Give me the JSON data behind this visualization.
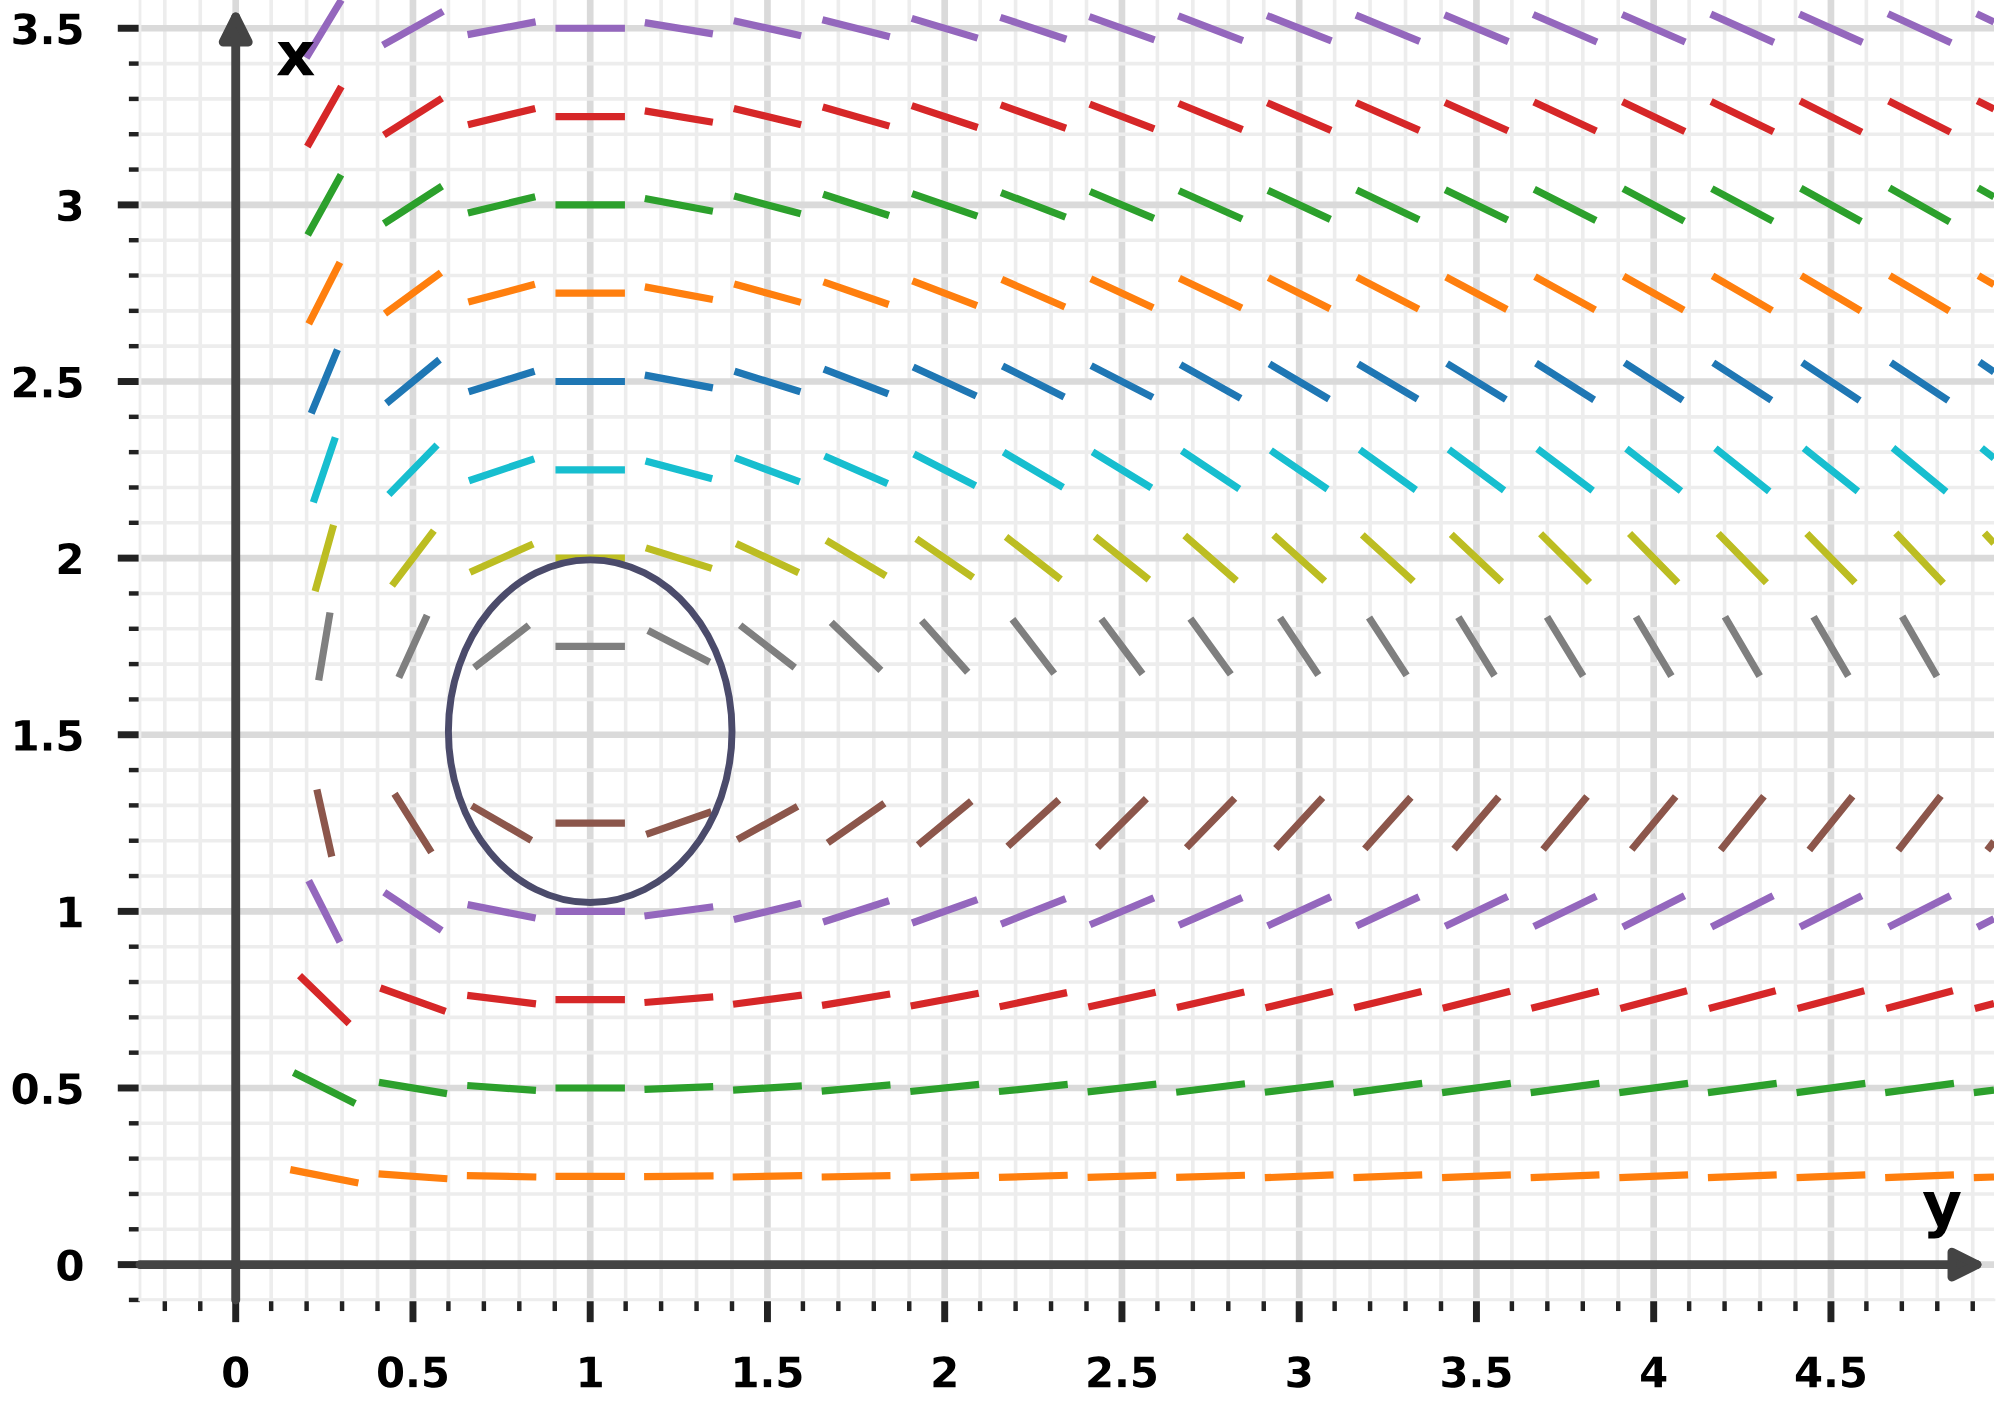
{
  "chart_data": {
    "type": "line",
    "xlabel": "y",
    "ylabel": "x",
    "grid": true,
    "line_style": "solid",
    "xlim": [
      -0.27,
      4.96
    ],
    "ylim": [
      -0.1,
      3.58
    ],
    "xticks": [
      {
        "value": -0.2,
        "label": null
      },
      {
        "value": -0.1,
        "label": null
      },
      0,
      {
        "value": 0.1,
        "label": null
      },
      {
        "value": 0.2,
        "label": null
      },
      {
        "value": 0.3,
        "label": null
      },
      {
        "value": 0.4,
        "label": null
      },
      0.5,
      {
        "value": 0.6,
        "label": null
      },
      {
        "value": 0.7,
        "label": null
      },
      {
        "value": 0.8,
        "label": null
      },
      {
        "value": 0.9,
        "label": null
      },
      1,
      {
        "value": 1.1,
        "label": null
      },
      {
        "value": 1.2,
        "label": null
      },
      {
        "value": 1.3,
        "label": null
      },
      {
        "value": 1.4,
        "label": null
      },
      1.5,
      {
        "value": 1.6,
        "label": null
      },
      {
        "value": 1.7,
        "label": null
      },
      {
        "value": 1.8,
        "label": null
      },
      {
        "value": 1.9,
        "label": null
      },
      2,
      {
        "value": 2.1,
        "label": null
      },
      {
        "value": 2.2,
        "label": null
      },
      {
        "value": 2.3,
        "label": null
      },
      {
        "value": 2.4,
        "label": null
      },
      2.5,
      {
        "value": 2.6,
        "label": null
      },
      {
        "value": 2.7,
        "label": null
      },
      {
        "value": 2.8,
        "label": null
      },
      {
        "value": 2.9,
        "label": null
      },
      3,
      {
        "value": 3.1,
        "label": null
      },
      {
        "value": 3.2,
        "label": null
      },
      {
        "value": 3.3,
        "label": null
      },
      {
        "value": 3.4,
        "label": null
      },
      3.5,
      {
        "value": 3.6,
        "label": null
      },
      {
        "value": 3.7,
        "label": null
      },
      {
        "value": 3.8,
        "label": null
      },
      {
        "value": 3.9,
        "label": null
      },
      4,
      {
        "value": 4.1,
        "label": null
      },
      {
        "value": 4.2,
        "label": null
      },
      {
        "value": 4.3,
        "label": null
      },
      {
        "value": 4.4,
        "label": null
      },
      4.5,
      {
        "value": 4.6,
        "label": null
      },
      {
        "value": 4.7,
        "label": null
      },
      {
        "value": 4.8,
        "label": null
      },
      {
        "value": 4.9,
        "label": null
      }
    ],
    "yticks": [
      {
        "value": -0.1,
        "label": null
      },
      0,
      {
        "value": 0.1,
        "label": null
      },
      {
        "value": 0.2,
        "label": null
      },
      {
        "value": 0.3,
        "label": null
      },
      {
        "value": 0.4,
        "label": null
      },
      0.5,
      {
        "value": 0.6,
        "label": null
      },
      {
        "value": 0.7,
        "label": null
      },
      {
        "value": 0.8,
        "label": null
      },
      {
        "value": 0.9,
        "label": null
      },
      1,
      {
        "value": 1.1,
        "label": null
      },
      {
        "value": 1.2,
        "label": null
      },
      {
        "value": 1.3,
        "label": null
      },
      {
        "value": 1.4,
        "label": null
      },
      1.5,
      {
        "value": 1.6,
        "label": null
      },
      {
        "value": 1.7,
        "label": null
      },
      {
        "value": 1.8,
        "label": null
      },
      {
        "value": 1.9,
        "label": null
      },
      2,
      {
        "value": 2.1,
        "label": null
      },
      {
        "value": 2.2,
        "label": null
      },
      {
        "value": 2.3,
        "label": null
      },
      {
        "value": 2.4,
        "label": null
      },
      2.5,
      {
        "value": 2.6,
        "label": null
      },
      {
        "value": 2.7,
        "label": null
      },
      {
        "value": 2.8,
        "label": null
      },
      {
        "value": 2.9,
        "label": null
      },
      3,
      {
        "value": 3.1,
        "label": null
      },
      {
        "value": 3.2,
        "label": null
      },
      {
        "value": 3.3,
        "label": null
      },
      {
        "value": 3.4,
        "label": null
      },
      3.5
    ],
    "series": [
      {
        "color": "#ff7f0e",
        "x": [
          0.154,
          0.346,
          null,
          0.403,
          0.597,
          null,
          0.652,
          0.848,
          null,
          0.902,
          1.098,
          null,
          1.152,
          1.348,
          null,
          1.402,
          1.598,
          null,
          1.653,
          1.847,
          null,
          1.903,
          2.097,
          null,
          2.153,
          2.347,
          null,
          2.403,
          2.597,
          null,
          2.653,
          2.847,
          null,
          2.903,
          3.097,
          null,
          3.153,
          3.347,
          null,
          3.403,
          3.597,
          null,
          3.653,
          3.847,
          null,
          3.903,
          4.097,
          null,
          4.153,
          4.347,
          null,
          4.403,
          4.597,
          null,
          4.653,
          4.847,
          null,
          4.903,
          4.96
        ],
        "values": [
          0.269,
          0.231,
          null,
          0.257,
          0.243,
          null,
          0.252,
          0.248,
          null,
          0.25,
          0.25,
          null,
          0.249,
          0.251,
          null,
          0.248,
          0.252,
          null,
          0.248,
          0.252,
          null,
          0.247,
          0.253,
          null,
          0.247,
          0.253,
          null,
          0.247,
          0.253,
          null,
          0.247,
          0.253,
          null,
          0.246,
          0.254,
          null,
          0.246,
          0.254,
          null,
          0.246,
          0.254,
          null,
          0.246,
          0.254,
          null,
          0.246,
          0.254,
          null,
          0.246,
          0.254,
          null,
          0.246,
          0.254,
          null,
          0.246,
          0.254,
          null,
          0.246,
          0.248
        ]
      },
      {
        "color": "#2ca02c",
        "x": [
          0.163,
          0.337,
          null,
          0.404,
          0.596,
          null,
          0.653,
          0.847,
          null,
          0.902,
          1.098,
          null,
          1.153,
          1.347,
          null,
          1.403,
          1.597,
          null,
          1.653,
          1.847,
          null,
          1.903,
          2.097,
          null,
          2.153,
          2.347,
          null,
          2.403,
          2.597,
          null,
          2.653,
          2.847,
          null,
          2.903,
          3.097,
          null,
          3.153,
          3.347,
          null,
          3.403,
          3.597,
          null,
          3.653,
          3.847,
          null,
          3.903,
          4.097,
          null,
          4.153,
          4.347,
          null,
          4.403,
          4.597,
          null,
          4.653,
          4.847,
          null,
          4.903,
          4.96
        ],
        "values": [
          0.544,
          0.456,
          null,
          0.516,
          0.484,
          null,
          0.507,
          0.493,
          null,
          0.5,
          0.5,
          null,
          0.496,
          0.504,
          null,
          0.494,
          0.506,
          null,
          0.491,
          0.509,
          null,
          0.49,
          0.51,
          null,
          0.49,
          0.51,
          null,
          0.489,
          0.511,
          null,
          0.488,
          0.512,
          null,
          0.488,
          0.512,
          null,
          0.487,
          0.513,
          null,
          0.487,
          0.513,
          null,
          0.487,
          0.513,
          null,
          0.487,
          0.513,
          null,
          0.487,
          0.513,
          null,
          0.487,
          0.513,
          null,
          0.487,
          0.513,
          null,
          0.487,
          0.494
        ]
      },
      {
        "color": "#d62728",
        "x": [
          0.18,
          0.32,
          null,
          0.408,
          0.592,
          null,
          0.653,
          0.847,
          null,
          0.902,
          1.098,
          null,
          1.153,
          1.347,
          null,
          1.403,
          1.597,
          null,
          1.654,
          1.846,
          null,
          1.904,
          2.096,
          null,
          2.155,
          2.345,
          null,
          2.405,
          2.595,
          null,
          2.655,
          2.845,
          null,
          2.905,
          3.095,
          null,
          3.155,
          3.345,
          null,
          3.405,
          3.595,
          null,
          3.655,
          3.845,
          null,
          3.906,
          4.094,
          null,
          4.156,
          4.344,
          null,
          4.406,
          4.594,
          null,
          4.656,
          4.844,
          null,
          4.906,
          4.96
        ],
        "values": [
          0.818,
          0.682,
          null,
          0.783,
          0.717,
          null,
          0.762,
          0.738,
          null,
          0.75,
          0.75,
          null,
          0.742,
          0.758,
          null,
          0.737,
          0.763,
          null,
          0.734,
          0.766,
          null,
          0.732,
          0.768,
          null,
          0.73,
          0.77,
          null,
          0.729,
          0.771,
          null,
          0.728,
          0.772,
          null,
          0.727,
          0.773,
          null,
          0.727,
          0.773,
          null,
          0.726,
          0.774,
          null,
          0.726,
          0.774,
          null,
          0.725,
          0.775,
          null,
          0.725,
          0.775,
          null,
          0.725,
          0.775,
          null,
          0.725,
          0.775,
          null,
          0.725,
          0.739
        ]
      },
      {
        "color": "#9467bd",
        "x": [
          0.206,
          0.294,
          null,
          0.419,
          0.581,
          null,
          0.654,
          0.846,
          null,
          0.902,
          1.098,
          null,
          1.153,
          1.347,
          null,
          1.405,
          1.595,
          null,
          1.657,
          1.843,
          null,
          1.908,
          2.092,
          null,
          2.159,
          2.341,
          null,
          2.41,
          2.59,
          null,
          2.661,
          2.839,
          null,
          2.911,
          3.089,
          null,
          3.162,
          3.338,
          null,
          3.412,
          3.588,
          null,
          3.662,
          3.838,
          null,
          3.913,
          4.087,
          null,
          4.163,
          4.337,
          null,
          4.413,
          4.587,
          null,
          4.663,
          4.837,
          null,
          4.913,
          4.96
        ],
        "values": [
          1.087,
          0.913,
          null,
          1.054,
          0.946,
          null,
          1.019,
          0.981,
          null,
          1,
          1,
          null,
          0.987,
          1.013,
          null,
          0.977,
          1.023,
          null,
          0.97,
          1.03,
          null,
          0.967,
          1.033,
          null,
          0.964,
          1.036,
          null,
          0.962,
          1.038,
          null,
          0.961,
          1.039,
          null,
          0.959,
          1.041,
          null,
          0.959,
          1.041,
          null,
          0.958,
          1.042,
          null,
          0.957,
          1.043,
          null,
          0.956,
          1.044,
          null,
          0.956,
          1.044,
          null,
          0.956,
          1.044,
          null,
          0.956,
          1.044,
          null,
          0.955,
          0.979
        ]
      },
      {
        "color": "#8c564b",
        "x": [
          0.229,
          0.271,
          null,
          0.448,
          0.552,
          null,
          0.666,
          0.834,
          null,
          0.902,
          1.098,
          null,
          1.158,
          1.342,
          null,
          1.415,
          1.585,
          null,
          1.67,
          1.83,
          null,
          1.925,
          2.075,
          null,
          2.178,
          2.322,
          null,
          2.431,
          2.569,
          null,
          2.682,
          2.818,
          null,
          2.934,
          3.066,
          null,
          3.185,
          3.315,
          null,
          3.437,
          3.563,
          null,
          3.688,
          3.812,
          null,
          3.938,
          4.062,
          null,
          4.189,
          4.311,
          null,
          4.439,
          4.561,
          null,
          4.69,
          4.81,
          null,
          4.941,
          4.96
        ],
        "values": [
          1.345,
          1.155,
          null,
          1.333,
          1.167,
          null,
          1.299,
          1.201,
          null,
          1.25,
          1.25,
          null,
          1.218,
          1.282,
          null,
          1.203,
          1.297,
          null,
          1.194,
          1.306,
          null,
          1.188,
          1.312,
          null,
          1.184,
          1.316,
          null,
          1.181,
          1.319,
          null,
          1.18,
          1.32,
          null,
          1.178,
          1.322,
          null,
          1.177,
          1.323,
          null,
          1.176,
          1.324,
          null,
          1.175,
          1.325,
          null,
          1.175,
          1.325,
          null,
          1.174,
          1.326,
          null,
          1.174,
          1.326,
          null,
          1.173,
          1.327,
          null,
          1.173,
          1.198
        ]
      },
      {
        "color": "#7f7f7f",
        "x": [
          0.234,
          0.266,
          null,
          0.46,
          0.54,
          null,
          0.673,
          0.827,
          null,
          0.902,
          1.098,
          null,
          1.163,
          1.337,
          null,
          1.423,
          1.577,
          null,
          1.68,
          1.82,
          null,
          1.935,
          2.065,
          null,
          2.191,
          2.309,
          null,
          2.442,
          2.558,
          null,
          2.693,
          2.807,
          null,
          2.946,
          3.054,
          null,
          3.197,
          3.303,
          null,
          3.449,
          3.551,
          null,
          3.699,
          3.801,
          null,
          3.95,
          4.05,
          null,
          4.201,
          4.299,
          null,
          4.451,
          4.549,
          null,
          4.701,
          4.799
        ],
        "values": [
          1.654,
          1.846,
          null,
          1.662,
          1.838,
          null,
          1.69,
          1.81,
          null,
          1.75,
          1.75,
          null,
          1.795,
          1.705,
          null,
          1.81,
          1.69,
          null,
          1.818,
          1.682,
          null,
          1.823,
          1.677,
          null,
          1.827,
          1.673,
          null,
          1.828,
          1.672,
          null,
          1.829,
          1.671,
          null,
          1.831,
          1.669,
          null,
          1.832,
          1.668,
          null,
          1.833,
          1.667,
          null,
          1.834,
          1.666,
          null,
          1.834,
          1.666,
          null,
          1.834,
          1.666,
          null,
          1.834,
          1.666,
          null,
          1.835,
          1.665
        ]
      },
      {
        "color": "#bcbd22",
        "x": [
          0.224,
          0.276,
          null,
          0.441,
          0.559,
          null,
          0.661,
          0.839,
          null,
          0.902,
          1.098,
          null,
          1.157,
          1.343,
          null,
          1.412,
          1.588,
          null,
          1.666,
          1.834,
          null,
          1.92,
          2.08,
          null,
          2.173,
          2.327,
          null,
          2.424,
          2.576,
          null,
          2.677,
          2.823,
          null,
          2.928,
          3.072,
          null,
          3.178,
          3.322,
          null,
          3.429,
          3.571,
          null,
          3.681,
          3.819,
          null,
          3.932,
          4.068,
          null,
          4.182,
          4.318,
          null,
          4.432,
          4.568,
          null,
          4.683,
          4.817,
          null,
          4.933,
          4.96
        ],
        "values": [
          1.906,
          2.094,
          null,
          1.922,
          2.078,
          null,
          1.96,
          2.04,
          null,
          2,
          2,
          null,
          2.029,
          1.971,
          null,
          2.041,
          1.959,
          null,
          2.05,
          1.95,
          null,
          2.055,
          1.945,
          null,
          2.06,
          1.94,
          null,
          2.061,
          1.939,
          null,
          2.064,
          1.936,
          null,
          2.065,
          1.935,
          null,
          2.066,
          1.934,
          null,
          2.067,
          1.933,
          null,
          2.069,
          1.931,
          null,
          2.07,
          1.93,
          null,
          2.07,
          1.93,
          null,
          2.07,
          1.93,
          null,
          2.071,
          1.929,
          null,
          2.071,
          2.042
        ]
      },
      {
        "color": "#17becf",
        "x": [
          0.219,
          0.281,
          null,
          0.432,
          0.568,
          null,
          0.658,
          0.842,
          null,
          0.902,
          1.098,
          null,
          1.156,
          1.344,
          null,
          1.409,
          1.591,
          null,
          1.661,
          1.839,
          null,
          1.913,
          2.087,
          null,
          2.166,
          2.334,
          null,
          2.417,
          2.583,
          null,
          2.669,
          2.831,
          null,
          2.92,
          3.08,
          null,
          3.171,
          3.329,
          null,
          3.422,
          3.578,
          null,
          3.672,
          3.828,
          null,
          3.923,
          4.077,
          null,
          4.174,
          4.326,
          null,
          4.424,
          4.576,
          null,
          4.675,
          4.825,
          null,
          4.925,
          4.96
        ],
        "values": [
          2.158,
          2.342,
          null,
          2.18,
          2.32,
          null,
          2.219,
          2.281,
          null,
          2.25,
          2.25,
          null,
          2.275,
          2.225,
          null,
          2.284,
          2.216,
          null,
          2.289,
          2.211,
          null,
          2.295,
          2.205,
          null,
          2.3,
          2.2,
          null,
          2.301,
          2.199,
          null,
          2.304,
          2.196,
          null,
          2.305,
          2.195,
          null,
          2.307,
          2.193,
          null,
          2.308,
          2.192,
          null,
          2.309,
          2.191,
          null,
          2.31,
          2.19,
          null,
          2.311,
          2.189,
          null,
          2.311,
          2.189,
          null,
          2.312,
          2.188,
          null,
          2.312,
          2.283
        ]
      },
      {
        "color": "#1f77b4",
        "x": [
          0.213,
          0.287,
          null,
          0.425,
          0.575,
          null,
          0.657,
          0.843,
          null,
          0.902,
          1.098,
          null,
          1.154,
          1.346,
          null,
          1.407,
          1.593,
          null,
          1.659,
          1.841,
          null,
          1.911,
          2.089,
          null,
          2.163,
          2.337,
          null,
          2.413,
          2.587,
          null,
          2.665,
          2.835,
          null,
          2.916,
          3.084,
          null,
          3.166,
          3.334,
          null,
          3.417,
          3.583,
          null,
          3.668,
          3.832,
          null,
          3.918,
          4.082,
          null,
          4.168,
          4.332,
          null,
          4.419,
          4.581,
          null,
          4.669,
          4.831,
          null,
          4.919,
          4.96
        ],
        "values": [
          2.41,
          2.59,
          null,
          2.438,
          2.562,
          null,
          2.471,
          2.529,
          null,
          2.5,
          2.5,
          null,
          2.518,
          2.482,
          null,
          2.529,
          2.471,
          null,
          2.535,
          2.465,
          null,
          2.541,
          2.459,
          null,
          2.544,
          2.456,
          null,
          2.545,
          2.455,
          null,
          2.548,
          2.452,
          null,
          2.55,
          2.45,
          null,
          2.55,
          2.45,
          null,
          2.551,
          2.449,
          null,
          2.552,
          2.448,
          null,
          2.553,
          2.447,
          null,
          2.553,
          2.447,
          null,
          2.554,
          2.446,
          null,
          2.554,
          2.446,
          null,
          2.555,
          2.527
        ]
      },
      {
        "color": "#ff7f0e",
        "x": [
          0.206,
          0.294,
          null,
          0.421,
          0.579,
          null,
          0.656,
          0.844,
          null,
          0.902,
          1.098,
          null,
          1.154,
          1.346,
          null,
          1.406,
          1.594,
          null,
          1.658,
          1.842,
          null,
          1.909,
          2.091,
          null,
          2.161,
          2.339,
          null,
          2.412,
          2.588,
          null,
          2.662,
          2.838,
          null,
          2.913,
          3.087,
          null,
          3.163,
          3.337,
          null,
          3.414,
          3.586,
          null,
          3.665,
          3.835,
          null,
          3.915,
          4.085,
          null,
          4.166,
          4.334,
          null,
          4.416,
          4.584,
          null,
          4.666,
          4.834,
          null,
          4.916,
          4.96
        ],
        "values": [
          2.663,
          2.837,
          null,
          2.692,
          2.808,
          null,
          2.725,
          2.775,
          null,
          2.75,
          2.75,
          null,
          2.768,
          2.732,
          null,
          2.776,
          2.724,
          null,
          2.782,
          2.718,
          null,
          2.785,
          2.715,
          null,
          2.789,
          2.711,
          null,
          2.791,
          2.709,
          null,
          2.792,
          2.708,
          null,
          2.794,
          2.706,
          null,
          2.795,
          2.705,
          null,
          2.796,
          2.704,
          null,
          2.797,
          2.703,
          null,
          2.798,
          2.702,
          null,
          2.799,
          2.701,
          null,
          2.8,
          2.7,
          null,
          2.8,
          2.7,
          null,
          2.8,
          2.774
        ]
      },
      {
        "color": "#2ca02c",
        "x": [
          0.203,
          0.297,
          null,
          0.418,
          0.582,
          null,
          0.655,
          0.845,
          null,
          0.902,
          1.098,
          null,
          1.154,
          1.346,
          null,
          1.406,
          1.594,
          null,
          1.657,
          1.843,
          null,
          1.908,
          2.092,
          null,
          2.159,
          2.341,
          null,
          2.41,
          2.59,
          null,
          2.661,
          2.839,
          null,
          2.912,
          3.088,
          null,
          3.162,
          3.338,
          null,
          3.412,
          3.588,
          null,
          3.663,
          3.837,
          null,
          3.914,
          4.086,
          null,
          4.164,
          4.336,
          null,
          4.415,
          4.585,
          null,
          4.665,
          4.835,
          null,
          4.915,
          4.96
        ],
        "values": [
          2.915,
          3.085,
          null,
          2.947,
          3.053,
          null,
          2.977,
          3.023,
          null,
          3,
          3,
          null,
          3.018,
          2.982,
          null,
          3.025,
          2.975,
          null,
          3.03,
          2.97,
          null,
          3.032,
          2.968,
          null,
          3.035,
          2.965,
          null,
          3.038,
          2.962,
          null,
          3.04,
          2.96,
          null,
          3.041,
          2.959,
          null,
          3.042,
          2.958,
          null,
          3.043,
          2.957,
          null,
          3.044,
          2.956,
          null,
          3.046,
          2.954,
          null,
          3.046,
          2.954,
          null,
          3.047,
          2.953,
          null,
          3.048,
          2.952,
          null,
          3.048,
          3.023
        ]
      },
      {
        "color": "#d62728",
        "x": [
          0.202,
          0.298,
          null,
          0.418,
          0.582,
          null,
          0.655,
          0.845,
          null,
          0.902,
          1.098,
          null,
          1.154,
          1.346,
          null,
          1.405,
          1.595,
          null,
          1.656,
          1.844,
          null,
          1.907,
          2.093,
          null,
          2.158,
          2.342,
          null,
          2.409,
          2.591,
          null,
          2.66,
          2.84,
          null,
          2.91,
          3.09,
          null,
          3.161,
          3.339,
          null,
          3.411,
          3.589,
          null,
          3.662,
          3.838,
          null,
          3.912,
          4.088,
          null,
          4.162,
          4.338,
          null,
          4.413,
          4.587,
          null,
          4.663,
          4.837,
          null,
          4.913,
          4.96
        ],
        "values": [
          3.165,
          3.335,
          null,
          3.198,
          3.302,
          null,
          3.227,
          3.273,
          null,
          3.25,
          3.25,
          null,
          3.266,
          3.234,
          null,
          3.273,
          3.227,
          null,
          3.277,
          3.223,
          null,
          3.281,
          3.219,
          null,
          3.283,
          3.217,
          null,
          3.285,
          3.215,
          null,
          3.287,
          3.213,
          null,
          3.289,
          3.211,
          null,
          3.289,
          3.211,
          null,
          3.29,
          3.21,
          null,
          3.291,
          3.209,
          null,
          3.292,
          3.208,
          null,
          3.293,
          3.207,
          null,
          3.294,
          3.206,
          null,
          3.294,
          3.206,
          null,
          3.295,
          3.271
        ]
      },
      {
        "color": "#9467bd",
        "x": [
          0.199,
          0.298,
          null,
          0.415,
          0.585,
          null,
          0.654,
          0.846,
          null,
          0.902,
          1.098,
          null,
          1.154,
          1.346,
          null,
          1.405,
          1.595,
          null,
          1.655,
          1.845,
          null,
          1.907,
          2.093,
          null,
          2.157,
          2.343,
          null,
          2.408,
          2.592,
          null,
          2.659,
          2.841,
          null,
          2.909,
          3.091,
          null,
          3.16,
          3.34,
          null,
          3.41,
          3.59,
          null,
          3.66,
          3.84,
          null,
          3.911,
          4.089,
          null,
          4.161,
          4.339,
          null,
          4.411,
          4.589,
          null,
          4.661,
          4.839,
          null,
          4.911,
          4.96
        ],
        "values": [
          3.416,
          3.58,
          null,
          3.452,
          3.548,
          null,
          3.482,
          3.518,
          null,
          3.5,
          3.5,
          null,
          3.516,
          3.484,
          null,
          3.521,
          3.479,
          null,
          3.524,
          3.476,
          null,
          3.528,
          3.472,
          null,
          3.531,
          3.469,
          null,
          3.533,
          3.467,
          null,
          3.535,
          3.465,
          null,
          3.536,
          3.464,
          null,
          3.537,
          3.463,
          null,
          3.538,
          3.462,
          null,
          3.539,
          3.461,
          null,
          3.539,
          3.461,
          null,
          3.54,
          3.46,
          null,
          3.54,
          3.46,
          null,
          3.541,
          3.459,
          null,
          3.541,
          3.518
        ]
      }
    ]
  }
}
